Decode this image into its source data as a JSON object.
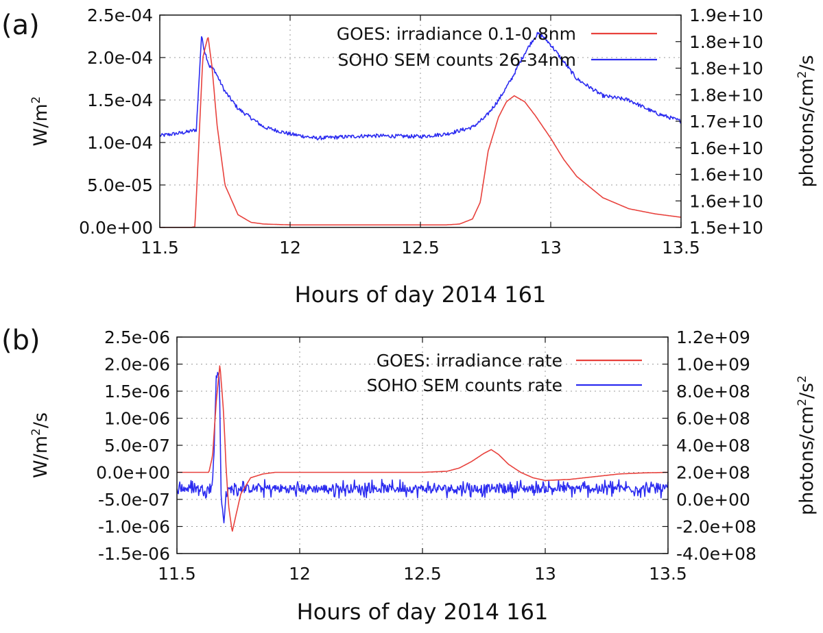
{
  "colors": {
    "goes": "#e8413c",
    "soho": "#2b2bf0",
    "grid": "#9a9a9a",
    "axis": "#111111"
  },
  "chart_data": [
    {
      "panel_label": "(a)",
      "type": "line",
      "xlabel": "Hours of day 2014 161",
      "xlim": [
        11.5,
        13.5
      ],
      "x_ticks": [
        "11.5",
        "12",
        "12.5",
        "13",
        "13.5"
      ],
      "y_label_left": "W/m",
      "y_label_left_sup": "2",
      "y_label_left_suffix": "",
      "ylim_left": [
        0,
        0.00025
      ],
      "y_ticks_left": [
        "0.0e+00",
        "5.0e-05",
        "1.0e-04",
        "1.5e-04",
        "2.0e-04",
        "2.5e-04"
      ],
      "y_label_right": "photons/cm",
      "y_label_right_sup": "2",
      "y_label_right_suffix": "/s",
      "y_ticks_right": [
        "1.5e+10",
        "1.6e+10",
        "1.6e+10",
        "1.6e+10",
        "1.7e+10",
        "1.8e+10",
        "1.8e+10",
        "1.8e+10",
        "1.9e+10"
      ],
      "grid": true,
      "legend_position": "top-right",
      "series": [
        {
          "name": "GOES: irradiance 0.1-0.8nm",
          "axis": "left",
          "color": "#e8413c",
          "x": [
            11.5,
            11.62,
            11.635,
            11.65,
            11.665,
            11.685,
            11.7,
            11.72,
            11.75,
            11.8,
            11.85,
            11.9,
            12.0,
            12.2,
            12.4,
            12.6,
            12.65,
            12.7,
            12.73,
            12.76,
            12.8,
            12.83,
            12.86,
            12.9,
            12.94,
            13.0,
            13.05,
            13.1,
            13.2,
            13.3,
            13.4,
            13.5
          ],
          "values": [
            0.0,
            0.0,
            1e-06,
            0.0001,
            0.0002,
            0.000225,
            0.00019,
            0.00012,
            5e-05,
            1.5e-05,
            6e-06,
            4e-06,
            3e-06,
            3e-06,
            3e-06,
            3e-06,
            4e-06,
            1e-05,
            3e-05,
            9e-05,
            0.00013,
            0.000148,
            0.000155,
            0.000148,
            0.000132,
            0.000105,
            8e-05,
            6e-05,
            3.5e-05,
            2.2e-05,
            1.6e-05,
            1.2e-05
          ]
        },
        {
          "name": "SOHO SEM counts 26-34nm",
          "axis": "left",
          "color": "#2b2bf0",
          "x": [
            11.5,
            11.6,
            11.64,
            11.66,
            11.67,
            11.69,
            11.71,
            11.75,
            11.8,
            11.9,
            12.0,
            12.1,
            12.3,
            12.5,
            12.6,
            12.7,
            12.75,
            12.8,
            12.85,
            12.9,
            12.93,
            12.95,
            12.97,
            13.0,
            13.05,
            13.1,
            13.2,
            13.3,
            13.4,
            13.5
          ],
          "values": [
            0.000108,
            0.000112,
            0.000115,
            0.000225,
            0.00021,
            0.00019,
            0.000185,
            0.00016,
            0.00014,
            0.000118,
            0.00011,
            0.000105,
            0.000108,
            0.000107,
            0.00011,
            0.000118,
            0.00013,
            0.00015,
            0.000175,
            0.000205,
            0.00022,
            0.000228,
            0.000225,
            0.000215,
            0.000195,
            0.000175,
            0.000155,
            0.00015,
            0.000135,
            0.000125
          ]
        }
      ]
    },
    {
      "panel_label": "(b)",
      "type": "line",
      "xlabel": "Hours of day 2014 161",
      "xlim": [
        11.5,
        13.5
      ],
      "x_ticks": [
        "11.5",
        "12",
        "12.5",
        "13",
        "13.5"
      ],
      "y_label_left": "W/m",
      "y_label_left_sup": "2",
      "y_label_left_suffix": "/s",
      "ylim_left": [
        -1.5e-06,
        2.5e-06
      ],
      "y_ticks_left": [
        "-1.5e-06",
        "-1.0e-06",
        "-5.0e-07",
        "0.0e+00",
        "5.0e-07",
        "1.0e-06",
        "1.5e-06",
        "2.0e-06",
        "2.5e-06"
      ],
      "y_label_right": "photons/cm",
      "y_label_right_sup": "2",
      "y_label_right_suffix": "/s",
      "y_label_right_sup2": "2",
      "y_ticks_right": [
        "-4.0e+08",
        "-2.0e+08",
        "0.0e+00",
        "2.0e+08",
        "4.0e+08",
        "6.0e+08",
        "8.0e+08",
        "1.0e+09",
        "1.2e+09"
      ],
      "grid": true,
      "legend_position": "top-right",
      "series": [
        {
          "name": "GOES: irradiance rate",
          "axis": "left",
          "color": "#e8413c",
          "x": [
            11.5,
            11.63,
            11.645,
            11.66,
            11.675,
            11.69,
            11.7,
            11.71,
            11.725,
            11.74,
            11.76,
            11.8,
            11.85,
            11.9,
            12.0,
            12.5,
            12.6,
            12.65,
            12.7,
            12.75,
            12.78,
            12.81,
            12.85,
            12.9,
            12.95,
            13.0,
            13.1,
            13.2,
            13.3,
            13.4,
            13.5
          ],
          "values": [
            0.0,
            0.0,
            3e-07,
            1.3e-06,
            2e-06,
            1.1e-06,
            1e-07,
            -6e-07,
            -1.1e-06,
            -8e-07,
            -4e-07,
            -1e-07,
            -3e-08,
            0.0,
            0.0,
            0.0,
            2e-08,
            8e-08,
            2e-07,
            3.5e-07,
            4.2e-07,
            3.3e-07,
            1.5e-07,
            0.0,
            -1e-07,
            -1.5e-07,
            -1.3e-07,
            -8e-08,
            -3e-08,
            -1e-08,
            0.0
          ]
        },
        {
          "name": "SOHO SEM counts rate",
          "axis": "left",
          "color": "#2b2bf0",
          "x": [
            11.5,
            11.64,
            11.65,
            11.66,
            11.67,
            11.675,
            11.68,
            11.69,
            11.7,
            11.72,
            11.75,
            13.5
          ],
          "values": [
            -3e-07,
            -3e-07,
            2e-07,
            1.8e-06,
            1.9e-06,
            1.2e-06,
            -5e-07,
            -9e-07,
            -4e-07,
            -3e-07,
            -3e-07,
            -3e-07
          ],
          "noise_amplitude": 8e-08
        }
      ]
    }
  ]
}
